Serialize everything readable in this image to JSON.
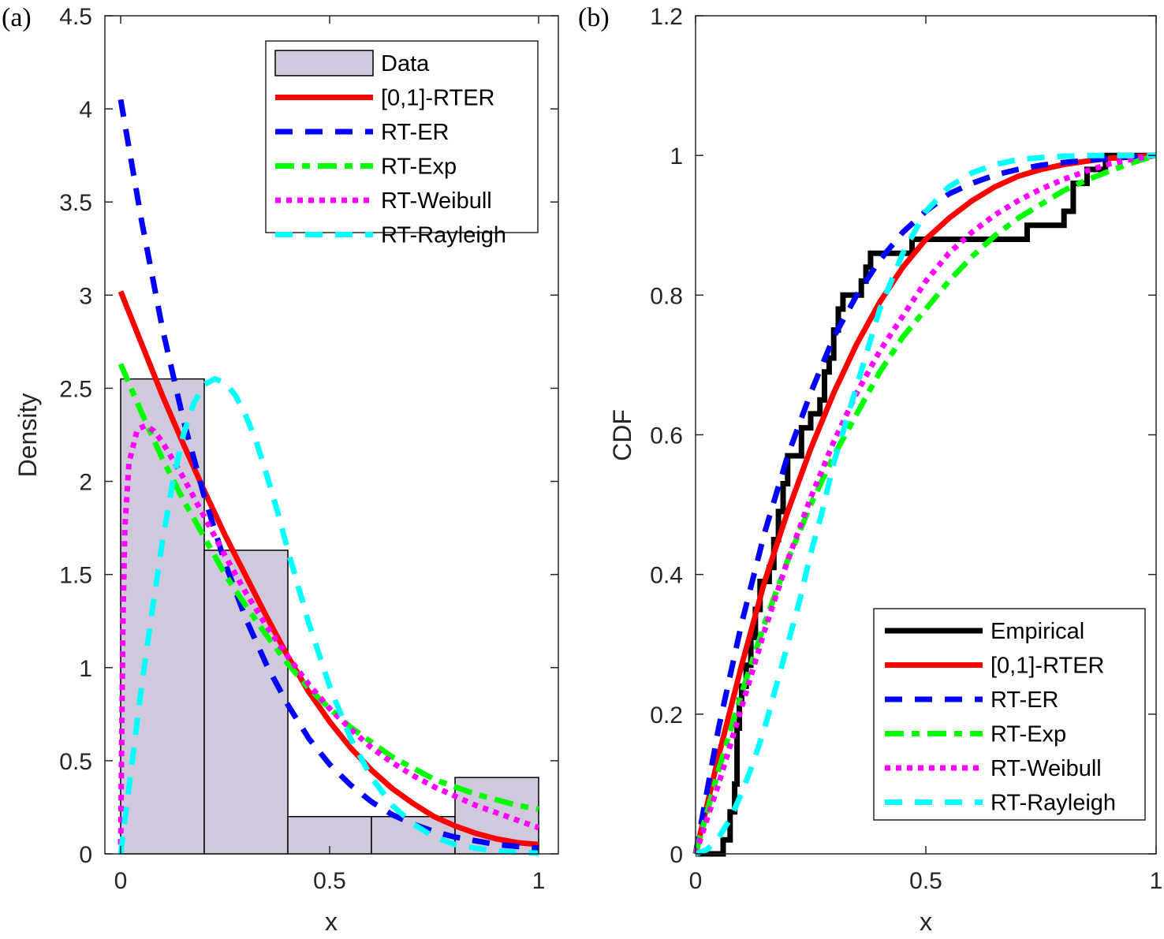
{
  "chart_data": [
    {
      "panel": "(a)",
      "type": "bar",
      "title": "",
      "xlabel": "x",
      "ylabel": "Density",
      "xlim": [
        -0.03,
        1.05
      ],
      "ylim": [
        0,
        4.5
      ],
      "xticks": [
        "0",
        "0.5",
        "1"
      ],
      "xtick_values": [
        0,
        0.5,
        1
      ],
      "yticks": [
        "0",
        "0.5",
        "1",
        "1.5",
        "2",
        "2.5",
        "3",
        "3.5",
        "4",
        "4.5"
      ],
      "ytick_values": [
        0,
        0.5,
        1,
        1.5,
        2,
        2.5,
        3,
        3.5,
        4,
        4.5
      ],
      "grid": false,
      "legend_position": "top-right",
      "histogram": {
        "name": "Data",
        "color": "#d0c9dc",
        "edges": [
          0,
          0.2,
          0.4,
          0.6,
          0.8,
          1.0
        ],
        "values": [
          2.55,
          1.63,
          0.2,
          0.2,
          0.41
        ]
      },
      "series": [
        {
          "name": "[0,1]-RTER",
          "color": "#ff0000",
          "style": "solid",
          "x": [
            0,
            0.05,
            0.1,
            0.15,
            0.2,
            0.25,
            0.3,
            0.35,
            0.4,
            0.45,
            0.5,
            0.55,
            0.6,
            0.65,
            0.7,
            0.75,
            0.8,
            0.85,
            0.9,
            0.95,
            1.0
          ],
          "y": [
            3.02,
            2.74,
            2.46,
            2.2,
            1.95,
            1.71,
            1.49,
            1.27,
            1.06,
            0.87,
            0.71,
            0.57,
            0.45,
            0.35,
            0.27,
            0.2,
            0.15,
            0.11,
            0.08,
            0.06,
            0.05
          ]
        },
        {
          "name": "RT-ER",
          "color": "#0000ff",
          "style": "dashed",
          "x": [
            0,
            0.05,
            0.1,
            0.15,
            0.2,
            0.25,
            0.3,
            0.35,
            0.4,
            0.45,
            0.5,
            0.55,
            0.6,
            0.65,
            0.7,
            0.75,
            0.8,
            0.85,
            0.9,
            0.95,
            1.0
          ],
          "y": [
            4.05,
            3.4,
            2.82,
            2.33,
            1.92,
            1.56,
            1.26,
            1.01,
            0.8,
            0.62,
            0.48,
            0.37,
            0.28,
            0.21,
            0.16,
            0.12,
            0.09,
            0.07,
            0.05,
            0.04,
            0.03
          ]
        },
        {
          "name": "RT-Exp",
          "color": "#00ff00",
          "style": "dashdot",
          "x": [
            0,
            0.05,
            0.1,
            0.15,
            0.2,
            0.25,
            0.3,
            0.35,
            0.4,
            0.45,
            0.5,
            0.55,
            0.6,
            0.65,
            0.7,
            0.75,
            0.8,
            0.85,
            0.9,
            0.95,
            1.0
          ],
          "y": [
            2.63,
            2.37,
            2.12,
            1.9,
            1.7,
            1.5,
            1.33,
            1.17,
            1.02,
            0.89,
            0.78,
            0.68,
            0.6,
            0.52,
            0.46,
            0.4,
            0.36,
            0.32,
            0.29,
            0.26,
            0.24
          ]
        },
        {
          "name": "RT-Weibull",
          "color": "#ff00ff",
          "style": "dotted",
          "x": [
            0,
            0.005,
            0.01,
            0.02,
            0.04,
            0.06,
            0.08,
            0.1,
            0.15,
            0.2,
            0.25,
            0.3,
            0.35,
            0.4,
            0.45,
            0.5,
            0.55,
            0.6,
            0.65,
            0.7,
            0.75,
            0.8,
            0.85,
            0.9,
            0.95,
            1.0
          ],
          "y": [
            0.05,
            1.2,
            1.75,
            2.1,
            2.28,
            2.3,
            2.27,
            2.21,
            2.02,
            1.81,
            1.6,
            1.4,
            1.22,
            1.06,
            0.91,
            0.78,
            0.67,
            0.57,
            0.49,
            0.42,
            0.36,
            0.31,
            0.26,
            0.22,
            0.18,
            0.14
          ]
        },
        {
          "name": "RT-Rayleigh",
          "color": "#00ffff",
          "style": "dashed",
          "x": [
            0,
            0.025,
            0.05,
            0.075,
            0.1,
            0.125,
            0.15,
            0.175,
            0.2,
            0.225,
            0.25,
            0.275,
            0.3,
            0.325,
            0.35,
            0.375,
            0.4,
            0.45,
            0.5,
            0.55,
            0.6,
            0.65,
            0.7,
            0.75,
            0.8,
            0.85,
            0.9,
            0.95,
            1.0
          ],
          "y": [
            0,
            0.45,
            0.9,
            1.3,
            1.68,
            2.0,
            2.25,
            2.42,
            2.52,
            2.55,
            2.53,
            2.46,
            2.35,
            2.21,
            2.03,
            1.84,
            1.63,
            1.24,
            0.9,
            0.62,
            0.41,
            0.26,
            0.16,
            0.09,
            0.05,
            0.03,
            0.015,
            0.008,
            0.004
          ]
        }
      ]
    },
    {
      "panel": "(b)",
      "type": "line",
      "title": "",
      "xlabel": "x",
      "ylabel": "CDF",
      "xlim": [
        0,
        1
      ],
      "ylim": [
        0,
        1.2
      ],
      "xticks": [
        "0",
        "0.5",
        "1"
      ],
      "xtick_values": [
        0,
        0.5,
        1
      ],
      "yticks": [
        "0",
        "0.2",
        "0.4",
        "0.6",
        "0.8",
        "1",
        "1.2"
      ],
      "ytick_values": [
        0,
        0.2,
        0.4,
        0.6,
        0.8,
        1,
        1.2
      ],
      "grid": false,
      "legend_position": "bottom-right",
      "series": [
        {
          "name": "Empirical",
          "color": "#000000",
          "style": "step",
          "x": [
            0,
            0.06,
            0.06,
            0.075,
            0.075,
            0.085,
            0.085,
            0.09,
            0.09,
            0.095,
            0.095,
            0.1,
            0.1,
            0.11,
            0.11,
            0.12,
            0.12,
            0.13,
            0.13,
            0.14,
            0.14,
            0.16,
            0.16,
            0.17,
            0.17,
            0.18,
            0.18,
            0.19,
            0.19,
            0.2,
            0.2,
            0.21,
            0.21,
            0.23,
            0.23,
            0.25,
            0.25,
            0.27,
            0.27,
            0.28,
            0.28,
            0.29,
            0.29,
            0.3,
            0.3,
            0.31,
            0.31,
            0.32,
            0.32,
            0.36,
            0.36,
            0.37,
            0.37,
            0.38,
            0.38,
            0.39,
            0.39,
            0.47,
            0.47,
            0.72,
            0.72,
            0.8,
            0.8,
            0.82,
            0.82,
            0.85,
            0.85,
            0.89,
            0.89,
            0.96,
            0.96,
            1.0
          ],
          "y": [
            0,
            0,
            0.02,
            0.02,
            0.06,
            0.06,
            0.1,
            0.1,
            0.18,
            0.18,
            0.22,
            0.22,
            0.24,
            0.24,
            0.27,
            0.27,
            0.31,
            0.31,
            0.35,
            0.35,
            0.39,
            0.39,
            0.41,
            0.41,
            0.45,
            0.45,
            0.49,
            0.49,
            0.53,
            0.53,
            0.57,
            0.57,
            0.57,
            0.57,
            0.61,
            0.61,
            0.63,
            0.63,
            0.65,
            0.65,
            0.69,
            0.69,
            0.71,
            0.71,
            0.75,
            0.75,
            0.78,
            0.78,
            0.8,
            0.8,
            0.82,
            0.82,
            0.84,
            0.84,
            0.86,
            0.86,
            0.86,
            0.86,
            0.88,
            0.88,
            0.9,
            0.9,
            0.92,
            0.92,
            0.96,
            0.96,
            0.98,
            0.98,
            1.0,
            1.0,
            1.0,
            1.0
          ]
        },
        {
          "name": "[0,1]-RTER",
          "color": "#ff0000",
          "style": "solid",
          "x": [
            0,
            0.05,
            0.1,
            0.15,
            0.2,
            0.25,
            0.3,
            0.35,
            0.4,
            0.45,
            0.5,
            0.55,
            0.6,
            0.65,
            0.7,
            0.75,
            0.8,
            0.85,
            0.9,
            0.95,
            1.0
          ],
          "y": [
            0,
            0.14,
            0.27,
            0.39,
            0.49,
            0.58,
            0.66,
            0.73,
            0.79,
            0.84,
            0.88,
            0.91,
            0.935,
            0.955,
            0.97,
            0.98,
            0.987,
            0.992,
            0.996,
            0.998,
            1.0
          ]
        },
        {
          "name": "RT-ER",
          "color": "#0000ff",
          "style": "dashed",
          "x": [
            0,
            0.05,
            0.1,
            0.15,
            0.2,
            0.25,
            0.3,
            0.35,
            0.4,
            0.45,
            0.5,
            0.55,
            0.6,
            0.65,
            0.7,
            0.75,
            0.8,
            0.85,
            0.9,
            0.95,
            1.0
          ],
          "y": [
            0,
            0.18,
            0.33,
            0.46,
            0.57,
            0.66,
            0.74,
            0.8,
            0.85,
            0.89,
            0.92,
            0.945,
            0.96,
            0.972,
            0.98,
            0.986,
            0.99,
            0.993,
            0.996,
            0.998,
            1.0
          ]
        },
        {
          "name": "RT-Exp",
          "color": "#00ff00",
          "style": "dashdot",
          "x": [
            0,
            0.05,
            0.1,
            0.15,
            0.2,
            0.25,
            0.3,
            0.35,
            0.4,
            0.45,
            0.5,
            0.55,
            0.6,
            0.65,
            0.7,
            0.75,
            0.8,
            0.85,
            0.9,
            0.95,
            1.0
          ],
          "y": [
            0,
            0.12,
            0.23,
            0.33,
            0.42,
            0.5,
            0.57,
            0.63,
            0.69,
            0.74,
            0.78,
            0.82,
            0.855,
            0.885,
            0.91,
            0.93,
            0.95,
            0.965,
            0.978,
            0.99,
            1.0
          ]
        },
        {
          "name": "RT-Weibull",
          "color": "#ff00ff",
          "style": "dotted",
          "x": [
            0,
            0.02,
            0.05,
            0.1,
            0.15,
            0.2,
            0.25,
            0.3,
            0.35,
            0.4,
            0.45,
            0.5,
            0.55,
            0.6,
            0.65,
            0.7,
            0.75,
            0.8,
            0.85,
            0.9,
            0.95,
            1.0
          ],
          "y": [
            0,
            0.04,
            0.1,
            0.21,
            0.32,
            0.42,
            0.51,
            0.59,
            0.66,
            0.72,
            0.77,
            0.82,
            0.86,
            0.89,
            0.915,
            0.935,
            0.952,
            0.966,
            0.978,
            0.988,
            0.995,
            1.0
          ]
        },
        {
          "name": "RT-Rayleigh",
          "color": "#00ffff",
          "style": "dashed",
          "x": [
            0,
            0.025,
            0.05,
            0.075,
            0.1,
            0.125,
            0.15,
            0.175,
            0.2,
            0.225,
            0.25,
            0.275,
            0.3,
            0.35,
            0.4,
            0.45,
            0.5,
            0.55,
            0.6,
            0.65,
            0.7,
            0.75,
            0.8,
            0.85,
            0.9,
            0.95,
            1.0
          ],
          "y": [
            0,
            0.006,
            0.023,
            0.05,
            0.087,
            0.13,
            0.18,
            0.24,
            0.3,
            0.36,
            0.43,
            0.49,
            0.56,
            0.67,
            0.78,
            0.86,
            0.92,
            0.955,
            0.975,
            0.987,
            0.994,
            0.997,
            0.999,
            1.0,
            1.0,
            1.0,
            1.0
          ]
        }
      ]
    }
  ]
}
